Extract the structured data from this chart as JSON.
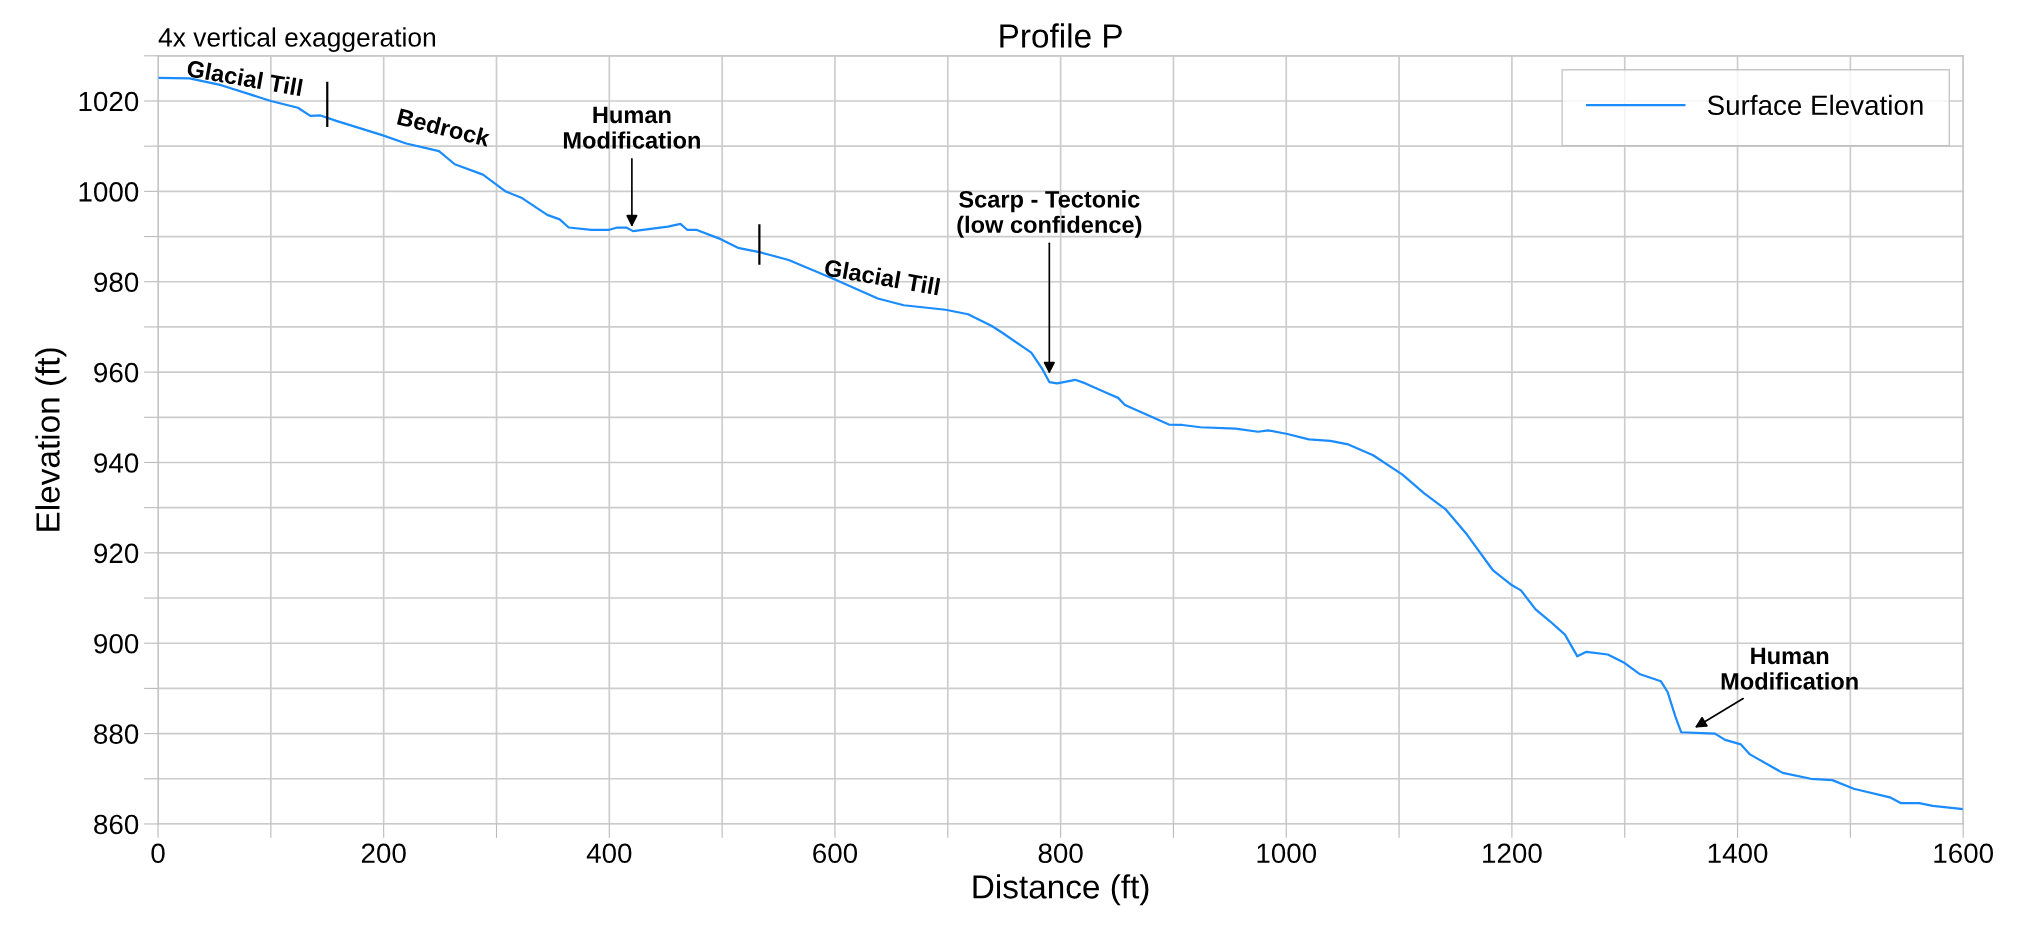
{
  "chart_data": {
    "type": "line",
    "title": "Profile P",
    "xlabel": "Distance (ft)",
    "ylabel": "Elevation (ft)",
    "series": [
      {
        "name": "Surface Elevation",
        "color": "#1a8cff",
        "x": [
          0,
          28,
          56,
          100,
          124,
          135,
          144,
          158,
          198,
          220,
          249,
          263,
          288,
          308,
          322,
          345,
          356,
          364,
          384,
          400,
          407,
          415,
          421,
          452,
          463,
          469,
          477,
          497,
          514,
          534,
          559,
          599,
          638,
          661,
          698,
          718,
          739,
          749,
          774,
          784,
          790,
          797,
          813,
          822,
          841,
          851,
          857,
          876,
          896,
          908,
          924,
          955,
          975,
          984,
          1001,
          1020,
          1039,
          1055,
          1077,
          1103,
          1122,
          1141,
          1160,
          1183,
          1199,
          1208,
          1221,
          1234,
          1247,
          1258,
          1266,
          1285,
          1300,
          1313,
          1332,
          1338,
          1345,
          1350,
          1380,
          1389,
          1403,
          1411,
          1440,
          1465,
          1484,
          1503,
          1535,
          1545,
          1561,
          1573,
          1599
        ],
        "values": [
          1025.1,
          1025,
          1023.5,
          1020,
          1018.5,
          1016.7,
          1016.8,
          1015.6,
          1012.5,
          1010.6,
          1008.9,
          1006,
          1003.7,
          1000,
          998.6,
          994.8,
          993.8,
          992,
          991.5,
          991.5,
          992,
          992,
          991.2,
          992.2,
          992.8,
          991.5,
          991.5,
          989.6,
          987.5,
          986.5,
          984.8,
          980.6,
          976.3,
          974.8,
          973.8,
          972.8,
          970.2,
          968.6,
          964.3,
          960.6,
          957.8,
          957.5,
          958.3,
          957.5,
          955.4,
          954.3,
          952.7,
          950.6,
          948.4,
          948.3,
          947.8,
          947.5,
          946.8,
          947.1,
          946.3,
          945.1,
          944.8,
          944,
          941.6,
          937.3,
          933.2,
          929.7,
          924.1,
          916.2,
          913,
          911.7,
          907.5,
          904.8,
          901.9,
          897.1,
          898.1,
          897.5,
          895.6,
          893.2,
          891.6,
          889.2,
          883.7,
          880.3,
          880,
          878.6,
          877.6,
          875.4,
          871.3,
          870,
          869.7,
          867.8,
          865.9,
          864.6,
          864.6,
          864,
          863.3
        ]
      },
      {
        "color": "#000000",
        "x": [
          150,
          150
        ],
        "values": [
          1014.5,
          1024
        ]
      },
      {
        "color": "#000000",
        "x": [
          533,
          533
        ],
        "values": [
          984,
          992.5
        ]
      }
    ],
    "xlim": [
      0,
      1600
    ],
    "xticks": [
      0,
      {
        "value": 100,
        "label": null
      },
      200,
      {
        "value": 300,
        "label": null
      },
      400,
      {
        "value": 500,
        "label": null
      },
      600,
      {
        "value": 700,
        "label": null
      },
      800,
      {
        "value": 900,
        "label": null
      },
      1000,
      {
        "value": 1100,
        "label": null
      },
      1200,
      {
        "value": 1300,
        "label": null
      },
      1400,
      {
        "value": 1500,
        "label": null
      },
      1600
    ],
    "ylim": [
      860,
      1030
    ],
    "yticks": [
      860,
      {
        "value": 870,
        "label": null
      },
      880,
      {
        "value": 890,
        "label": null
      },
      900,
      {
        "value": 910,
        "label": null
      },
      920,
      {
        "value": 930,
        "label": null
      },
      940,
      {
        "value": 950,
        "label": null
      },
      960,
      {
        "value": 970,
        "label": null
      },
      980,
      {
        "value": 990,
        "label": null
      },
      1000,
      {
        "value": 1010,
        "label": null
      },
      1020,
      {
        "value": 1030,
        "label": null
      }
    ],
    "grid": true,
    "legend": "top right",
    "annotations": [
      "4x vertical exaggeration",
      {
        "text": "Glacial Till",
        "x": 75,
        "y": 1021.6
      },
      {
        "text": "Bedrock",
        "x": 250,
        "y": 1008.9
      },
      {
        "text": "Glacial Till",
        "x": 640,
        "y": 976.3
      },
      {
        "text": "Human\nModification",
        "x": 420,
        "y": 991.5
      },
      {
        "text": "Scarp - Tectonic\n(low confidence)",
        "x": 790,
        "y": 959
      },
      {
        "text": "Human\nModification",
        "x": 1360,
        "y": 881
      }
    ]
  }
}
